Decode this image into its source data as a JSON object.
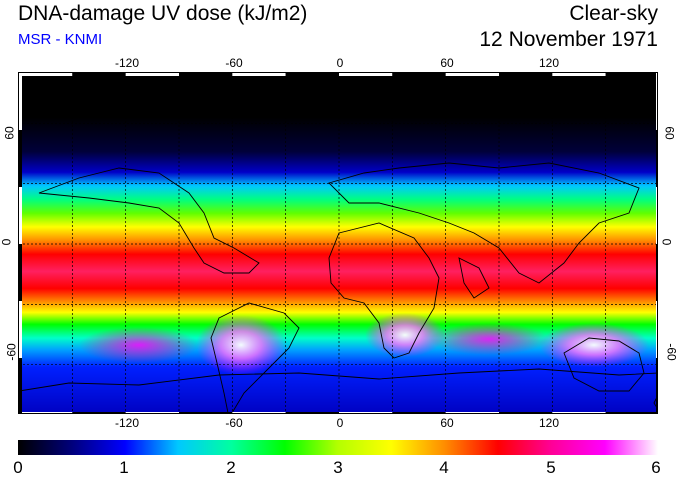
{
  "header": {
    "title": "DNA-damage UV dose (kJ/m2)",
    "subtitle": "MSR - KNMI",
    "condition": "Clear-sky",
    "date": "12 November 1971"
  },
  "colors": {
    "subtitle": "#0000ff",
    "scale": [
      "#000000",
      "#00007a",
      "#0000ff",
      "#00c8ff",
      "#00ffa0",
      "#00ff00",
      "#b4ff00",
      "#ffff00",
      "#ff8c00",
      "#ff0000",
      "#ff0096",
      "#ff00ff",
      "#ffffff"
    ]
  },
  "map": {
    "longitude_labels": [
      "-120",
      "-60",
      "0",
      "60",
      "120"
    ],
    "latitude_labels": [
      "60",
      "0",
      "-60"
    ],
    "longitude_values": [
      -120,
      -60,
      0,
      60,
      120
    ],
    "latitude_values": [
      60,
      0,
      -60
    ]
  },
  "colorbar": {
    "min": 0,
    "max": 6,
    "tick_labels": [
      "0",
      "1",
      "2",
      "3",
      "4",
      "5",
      "6"
    ],
    "tick_values": [
      0,
      1,
      2,
      3,
      4,
      5,
      6
    ]
  }
}
